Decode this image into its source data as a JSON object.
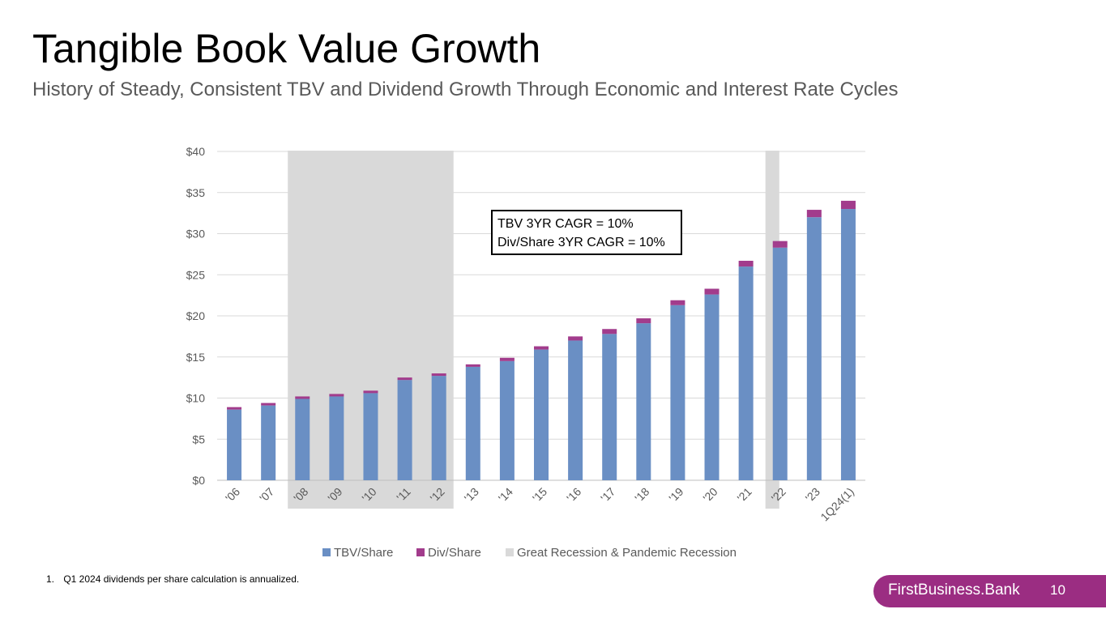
{
  "title": "Tangible Book Value Growth",
  "subtitle": "History of Steady, Consistent TBV and Dividend Growth Through Economic and Interest Rate Cycles",
  "footnote": {
    "number": "1.",
    "text": "Q1 2024 dividends per share calculation is annualized."
  },
  "brand": {
    "name": "FirstBusiness.Bank",
    "page_number": "10"
  },
  "colors": {
    "tbv": "#6a8fc4",
    "div": "#a23c8c",
    "recession": "#d9d9d9",
    "brand": "#9b2d82"
  },
  "chart_data": {
    "type": "bar",
    "stacked": true,
    "categories": [
      "'06",
      "'07",
      "'08",
      "'09",
      "'10",
      "'11",
      "'12",
      "'13",
      "'14",
      "'15",
      "'16",
      "'17",
      "'18",
      "'19",
      "'20",
      "'21",
      "'22",
      "'23",
      "1Q24(1)"
    ],
    "series": [
      {
        "name": "TBV/Share",
        "values": [
          8.6,
          9.1,
          9.9,
          10.2,
          10.6,
          12.2,
          12.7,
          13.8,
          14.5,
          15.9,
          17.0,
          17.8,
          19.1,
          21.3,
          22.6,
          26.0,
          28.3,
          32.0,
          33.0
        ]
      },
      {
        "name": "Div/Share",
        "values": [
          0.3,
          0.3,
          0.3,
          0.3,
          0.3,
          0.3,
          0.3,
          0.3,
          0.4,
          0.4,
          0.5,
          0.6,
          0.6,
          0.6,
          0.7,
          0.7,
          0.8,
          0.9,
          1.0
        ]
      }
    ],
    "recession_label": "Great Recession & Pandemic Recession",
    "recession_periods": [
      {
        "from": "'08",
        "to": "'12"
      },
      {
        "from": "'22",
        "to": "'22"
      }
    ],
    "yticks": [
      "$0",
      "$5",
      "$10",
      "$15",
      "$20",
      "$25",
      "$30",
      "$35",
      "$40"
    ],
    "ylim": [
      0,
      40
    ],
    "xlabel": "",
    "ylabel": "",
    "legend_position": "bottom",
    "grid": true,
    "annotation": {
      "line1": "TBV 3YR CAGR = 10%",
      "line2": "Div/Share 3YR CAGR = 10%"
    }
  }
}
